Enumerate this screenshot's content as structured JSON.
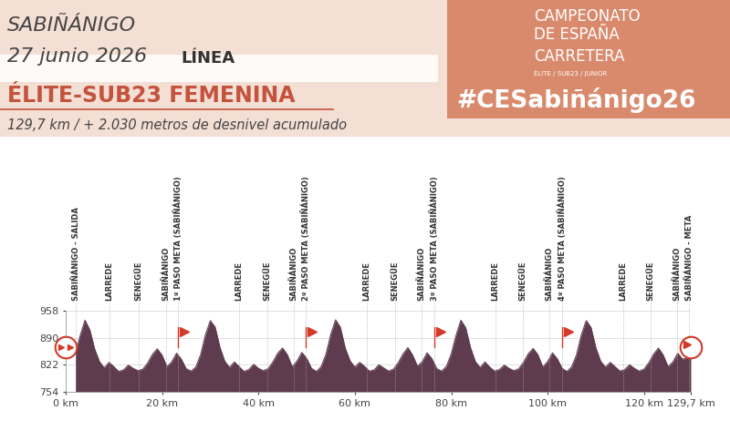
{
  "header": {
    "place": "SABIÑÁNIGO",
    "date": "27 junio 2026",
    "race_type": "LÍNEA",
    "category": "ÉLITE-SUB23 FEMENINA",
    "distance_info": "129,7 km / + 2.030 metros de desnivel acumulado",
    "brand_line1": "CAMPEONATO",
    "brand_line2": "DE ESPAÑA",
    "brand_line3": "CARRETERA",
    "brand_small": "ÉLITE / SUB23 / JUNIOR",
    "hashtag": "#CESabiñánigo26"
  },
  "chart_data": {
    "type": "area",
    "color": "#5e3b4e",
    "grid": true,
    "xlim": [
      0,
      129.7
    ],
    "ylim": [
      754,
      958
    ],
    "yticks": [
      754,
      822,
      890,
      958
    ],
    "xticks": [
      {
        "value": 0,
        "label": "0 km"
      },
      {
        "value": 20,
        "label": "20 km"
      },
      {
        "value": 40,
        "label": "40 km"
      },
      {
        "value": 60,
        "label": "60 km"
      },
      {
        "value": 80,
        "label": "80 km"
      },
      {
        "value": 100,
        "label": "100 km"
      },
      {
        "value": 120,
        "label": "120 km"
      },
      {
        "value": 129.7,
        "label": "129,7 km"
      }
    ],
    "x": [
      2.0,
      3.0,
      4.0,
      5.0,
      6.0,
      7.0,
      8.0,
      9.0,
      10.0,
      11.0,
      12.0,
      13.0,
      14.0,
      15.0,
      16.0,
      17.0,
      18.0,
      19.0,
      20.0,
      21.0,
      22.0,
      23.0,
      24.0,
      25.0,
      26.0,
      27.0,
      28.0,
      29.0,
      30.0,
      31.0,
      32.0,
      33.0,
      34.0,
      35.0,
      36.0,
      37.0,
      38.0,
      39.0,
      40.0,
      41.0,
      42.0,
      43.0,
      44.0,
      45.0,
      46.0,
      47.0,
      48.0,
      49.0,
      50.0,
      51.0,
      52.0,
      53.0,
      54.0,
      55.0,
      56.0,
      57.0,
      58.0,
      59.0,
      60.0,
      61.0,
      62.0,
      63.0,
      64.0,
      65.0,
      66.0,
      67.0,
      68.0,
      69.0,
      70.0,
      71.0,
      72.0,
      73.0,
      74.0,
      75.0,
      76.0,
      77.0,
      78.0,
      79.0,
      80.0,
      81.0,
      82.0,
      83.0,
      84.0,
      85.0,
      86.0,
      87.0,
      88.0,
      89.0,
      90.0,
      91.0,
      92.0,
      93.0,
      94.0,
      95.0,
      96.0,
      97.0,
      98.0,
      99.0,
      100.0,
      101.0,
      102.0,
      103.0,
      104.0,
      105.0,
      106.0,
      107.0,
      108.0,
      109.0,
      110.0,
      111.0,
      112.0,
      113.0,
      114.0,
      115.0,
      116.0,
      117.0,
      118.0,
      119.0,
      120.0,
      121.0,
      122.0,
      123.0,
      124.0,
      125.0,
      126.0,
      127.0,
      128.0,
      129.0,
      129.7
    ],
    "values": [
      850,
      895,
      934,
      910,
      862,
      830,
      814,
      828,
      817,
      805,
      809,
      821,
      813,
      807,
      811,
      826,
      848,
      862,
      846,
      817,
      829,
      851,
      836,
      812,
      806,
      816,
      847,
      897,
      933,
      917,
      866,
      831,
      815,
      829,
      817,
      805,
      810,
      823,
      813,
      807,
      812,
      829,
      851,
      864,
      847,
      817,
      831,
      853,
      838,
      813,
      805,
      817,
      848,
      898,
      935,
      916,
      864,
      832,
      816,
      828,
      818,
      806,
      809,
      822,
      814,
      806,
      811,
      827,
      849,
      865,
      846,
      818,
      830,
      852,
      837,
      812,
      806,
      818,
      849,
      896,
      934,
      915,
      865,
      830,
      815,
      829,
      816,
      806,
      810,
      821,
      813,
      807,
      812,
      828,
      850,
      863,
      847,
      816,
      830,
      852,
      837,
      813,
      805,
      817,
      847,
      897,
      933,
      916,
      865,
      831,
      816,
      828,
      817,
      806,
      810,
      822,
      813,
      806,
      811,
      827,
      849,
      864,
      846,
      817,
      829,
      851,
      836,
      840,
      848
    ],
    "annotations": [
      {
        "x": 2.1,
        "label": "SABIÑÁNIGO - SALIDA"
      },
      {
        "x": 9.1,
        "label": "LARREDE"
      },
      {
        "x": 15.2,
        "label": "SENEGÜE"
      },
      {
        "x": 20.8,
        "label": "SABIÑÁNIGO"
      },
      {
        "x": 23.3,
        "label": "1º PASO META (SABIÑÁNIGO)"
      },
      {
        "x": 36.0,
        "label": "LARREDE"
      },
      {
        "x": 41.9,
        "label": "SENEGÜE"
      },
      {
        "x": 47.3,
        "label": "SABIÑÁNIGO"
      },
      {
        "x": 49.8,
        "label": "2º PASO META (SABIÑÁNIGO)"
      },
      {
        "x": 62.5,
        "label": "LARREDE"
      },
      {
        "x": 68.4,
        "label": "SENEGÜE"
      },
      {
        "x": 73.9,
        "label": "SABIÑÁNIGO"
      },
      {
        "x": 76.5,
        "label": "3º PASO META (SABIÑÁNIGO)"
      },
      {
        "x": 89.2,
        "label": "LARREDE"
      },
      {
        "x": 94.9,
        "label": "SENEGÜE"
      },
      {
        "x": 100.4,
        "label": "SABIÑÁNIGO"
      },
      {
        "x": 103.0,
        "label": "4º PASO META (SABIÑÁNIGO)"
      },
      {
        "x": 115.7,
        "label": "LARREDE"
      },
      {
        "x": 121.4,
        "label": "SENEGÜE"
      },
      {
        "x": 126.9,
        "label": "SABIÑÁNIGO"
      },
      {
        "x": 129.4,
        "label": "SABIÑÁNIGO - META"
      }
    ]
  }
}
